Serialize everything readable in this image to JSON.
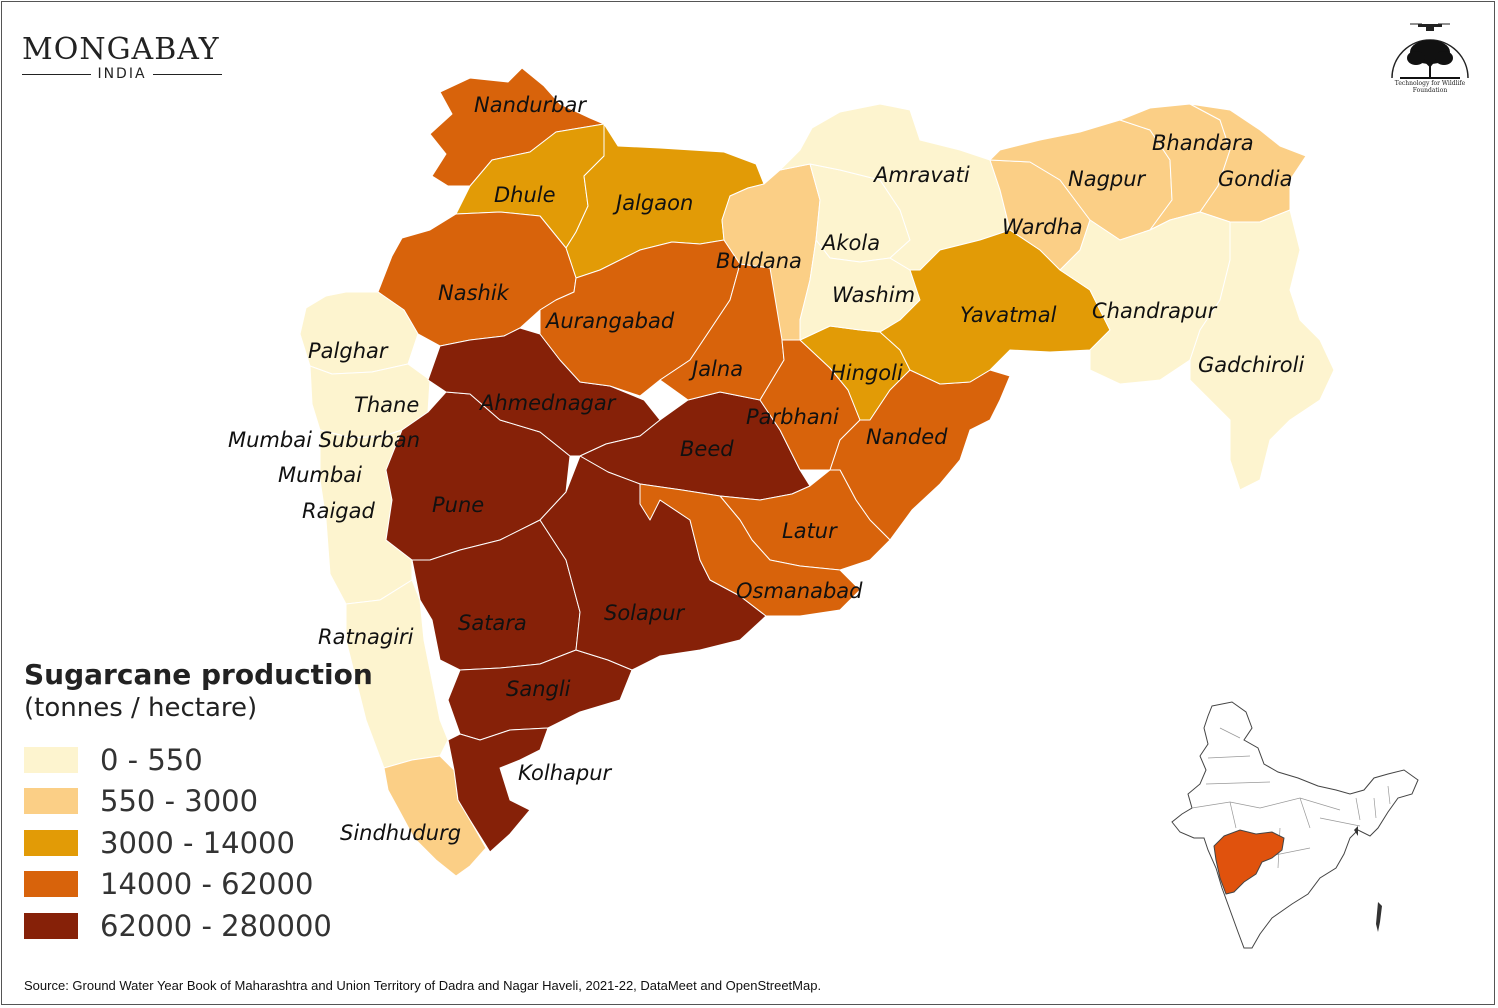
{
  "brand": {
    "name": "MONGABAY",
    "sub": "INDIA"
  },
  "partner": {
    "caption_line1": "Technology for Wildlife",
    "caption_line2": "Foundation"
  },
  "legend": {
    "title": "Sugarcane production",
    "subtitle": "(tonnes / hectare)",
    "classes": [
      {
        "range": "0 - 550",
        "color": "#fdf4cf"
      },
      {
        "range": "550 - 3000",
        "color": "#fbcf86"
      },
      {
        "range": "3000 - 14000",
        "color": "#e29b06"
      },
      {
        "range": "14000 - 62000",
        "color": "#d8630b"
      },
      {
        "range": "62000 - 280000",
        "color": "#862108"
      }
    ]
  },
  "districts": [
    {
      "name": "Nandurbar",
      "class": 3
    },
    {
      "name": "Dhule",
      "class": 2
    },
    {
      "name": "Jalgaon",
      "class": 2
    },
    {
      "name": "Nashik",
      "class": 3
    },
    {
      "name": "Palghar",
      "class": 0
    },
    {
      "name": "Thane",
      "class": 0
    },
    {
      "name": "Mumbai Suburban",
      "class": 0
    },
    {
      "name": "Mumbai",
      "class": 0
    },
    {
      "name": "Raigad",
      "class": 0
    },
    {
      "name": "Ratnagiri",
      "class": 0
    },
    {
      "name": "Sindhudurg",
      "class": 1
    },
    {
      "name": "Pune",
      "class": 4
    },
    {
      "name": "Ahmednagar",
      "class": 4
    },
    {
      "name": "Beed",
      "class": 4
    },
    {
      "name": "Satara",
      "class": 4
    },
    {
      "name": "Sangli",
      "class": 4
    },
    {
      "name": "Solapur",
      "class": 4
    },
    {
      "name": "Kolhapur",
      "class": 4
    },
    {
      "name": "Aurangabad",
      "class": 3
    },
    {
      "name": "Jalna",
      "class": 3
    },
    {
      "name": "Parbhani",
      "class": 3
    },
    {
      "name": "Hingoli",
      "class": 2
    },
    {
      "name": "Nanded",
      "class": 3
    },
    {
      "name": "Latur",
      "class": 3
    },
    {
      "name": "Osmanabad",
      "class": 3
    },
    {
      "name": "Buldana",
      "class": 1
    },
    {
      "name": "Akola",
      "class": 0
    },
    {
      "name": "Washim",
      "class": 0
    },
    {
      "name": "Amravati",
      "class": 0
    },
    {
      "name": "Yavatmal",
      "class": 2
    },
    {
      "name": "Wardha",
      "class": 1
    },
    {
      "name": "Nagpur",
      "class": 1
    },
    {
      "name": "Bhandara",
      "class": 1
    },
    {
      "name": "Gondia",
      "class": 1
    },
    {
      "name": "Chandrapur",
      "class": 0
    },
    {
      "name": "Gadchiroli",
      "class": 0
    }
  ],
  "inset": {
    "highlight_color": "#e0520d"
  },
  "source": "Source:  Ground Water Year Book of Maharashtra and Union Territory of Dadra and Nagar Haveli, 2021-22, DataMeet and OpenStreetMap."
}
